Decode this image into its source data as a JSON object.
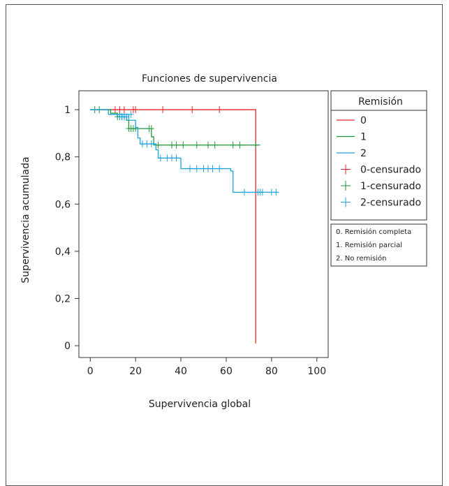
{
  "chart_data": {
    "type": "line",
    "title": "Funciones de supervivencia",
    "xlabel": "Supervivencia global",
    "ylabel": "Supervivencia acumulada",
    "xlim": [
      -5,
      105
    ],
    "ylim": [
      -0.05,
      1.08
    ],
    "x_ticks": [
      0,
      20,
      40,
      60,
      80,
      100
    ],
    "y_ticks": [
      0,
      0.2,
      0.4,
      0.6,
      0.8,
      1
    ],
    "y_tick_labels": [
      "0",
      "0,2",
      "0,4",
      "0,6",
      "0,8",
      "1"
    ],
    "grid": false,
    "legend_title": "Remisión",
    "legend_position": "right",
    "legend_entries": [
      {
        "label": "0",
        "kind": "line",
        "color": "#e8242a"
      },
      {
        "label": "1",
        "kind": "line",
        "color": "#1f9a3a"
      },
      {
        "label": "2",
        "kind": "line",
        "color": "#1aa3e0"
      },
      {
        "label": "0-censurado",
        "kind": "cross",
        "color": "#e8242a"
      },
      {
        "label": "1-censurado",
        "kind": "cross",
        "color": "#1f9a3a"
      },
      {
        "label": "2-censurado",
        "kind": "cross",
        "color": "#1aa3e0"
      }
    ],
    "notes": [
      "0. Remisión completa",
      "1. Remisión parcial",
      "2. No remisión"
    ],
    "series": [
      {
        "name": "0",
        "color": "#e8242a",
        "steps": [
          [
            0,
            1
          ],
          [
            73,
            1
          ],
          [
            73,
            0.01
          ]
        ],
        "censored": [
          [
            11,
            1
          ],
          [
            13,
            1
          ],
          [
            15,
            1
          ],
          [
            19,
            1
          ],
          [
            20,
            1
          ],
          [
            32,
            1
          ],
          [
            45,
            1
          ],
          [
            57,
            1
          ]
        ]
      },
      {
        "name": "1",
        "color": "#1f9a3a",
        "steps": [
          [
            0,
            1
          ],
          [
            9,
            1
          ],
          [
            9,
            0.985
          ],
          [
            12,
            0.985
          ],
          [
            12,
            0.97
          ],
          [
            16,
            0.97
          ],
          [
            16,
            0.955
          ],
          [
            17,
            0.955
          ],
          [
            17,
            0.92
          ],
          [
            27,
            0.92
          ],
          [
            27,
            0.885
          ],
          [
            28,
            0.885
          ],
          [
            28,
            0.85
          ],
          [
            75,
            0.85
          ]
        ],
        "censored": [
          [
            2,
            1
          ],
          [
            4,
            1
          ],
          [
            12,
            0.97
          ],
          [
            13,
            0.97
          ],
          [
            14,
            0.97
          ],
          [
            15,
            0.97
          ],
          [
            17,
            0.92
          ],
          [
            18,
            0.92
          ],
          [
            19,
            0.92
          ],
          [
            20,
            0.92
          ],
          [
            26,
            0.92
          ],
          [
            27,
            0.92
          ],
          [
            30,
            0.85
          ],
          [
            36,
            0.85
          ],
          [
            38,
            0.85
          ],
          [
            41,
            0.85
          ],
          [
            47,
            0.85
          ],
          [
            52,
            0.85
          ],
          [
            55,
            0.85
          ],
          [
            63,
            0.85
          ],
          [
            66,
            0.85
          ],
          [
            73,
            0.85
          ]
        ]
      },
      {
        "name": "2",
        "color": "#1aa3e0",
        "steps": [
          [
            0,
            1
          ],
          [
            8,
            1
          ],
          [
            8,
            0.98
          ],
          [
            17,
            0.98
          ],
          [
            17,
            0.955
          ],
          [
            20,
            0.955
          ],
          [
            20,
            0.925
          ],
          [
            21,
            0.925
          ],
          [
            21,
            0.88
          ],
          [
            22,
            0.88
          ],
          [
            22,
            0.855
          ],
          [
            29,
            0.855
          ],
          [
            29,
            0.83
          ],
          [
            30,
            0.83
          ],
          [
            30,
            0.795
          ],
          [
            40,
            0.795
          ],
          [
            40,
            0.75
          ],
          [
            62,
            0.75
          ],
          [
            62,
            0.74
          ],
          [
            63,
            0.74
          ],
          [
            63,
            0.65
          ],
          [
            83,
            0.65
          ]
        ],
        "censored": [
          [
            13,
            0.97
          ],
          [
            14,
            0.97
          ],
          [
            15,
            0.97
          ],
          [
            16,
            0.97
          ],
          [
            18,
            0.98
          ],
          [
            23,
            0.855
          ],
          [
            25,
            0.855
          ],
          [
            27,
            0.855
          ],
          [
            31,
            0.795
          ],
          [
            34,
            0.795
          ],
          [
            36,
            0.795
          ],
          [
            38,
            0.795
          ],
          [
            44,
            0.75
          ],
          [
            47,
            0.75
          ],
          [
            50,
            0.75
          ],
          [
            52,
            0.75
          ],
          [
            54,
            0.75
          ],
          [
            57,
            0.75
          ],
          [
            68,
            0.65
          ],
          [
            74,
            0.65
          ],
          [
            75,
            0.65
          ],
          [
            76,
            0.65
          ],
          [
            80,
            0.65
          ],
          [
            82,
            0.65
          ]
        ]
      }
    ]
  }
}
